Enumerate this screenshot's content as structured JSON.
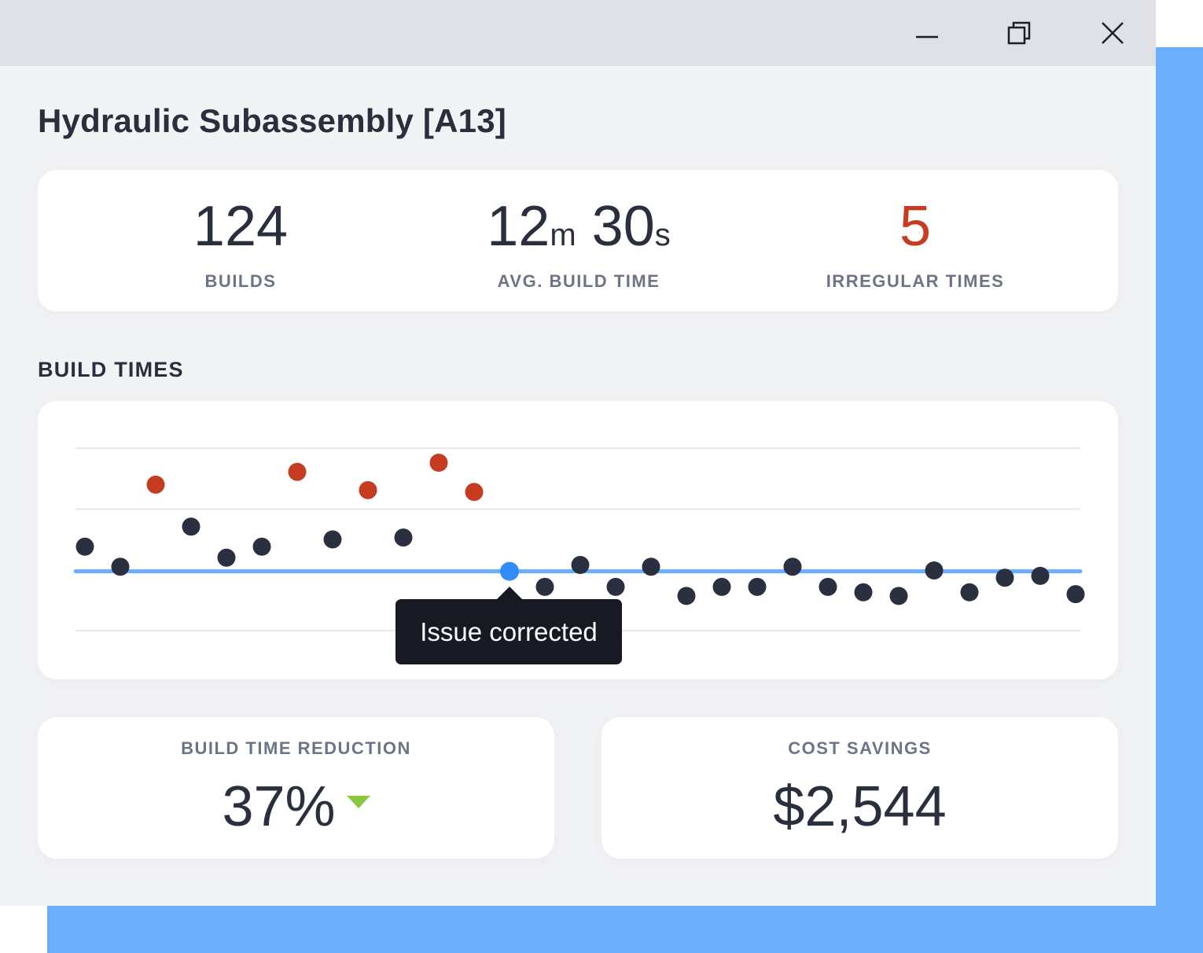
{
  "window": {
    "controls": {
      "minimize_icon": "minimize-icon",
      "maximize_icon": "restore-icon",
      "close_icon": "close-icon"
    }
  },
  "page": {
    "title": "Hydraulic Subassembly [A13]"
  },
  "stats": {
    "builds": {
      "value": "124",
      "label": "BUILDS"
    },
    "avg_build_time": {
      "minutes": "12",
      "minutes_unit": "m",
      "seconds": "30",
      "seconds_unit": "s",
      "label": "AVG. BUILD TIME"
    },
    "irregular_times": {
      "value": "5",
      "label": "IRREGULAR TIMES",
      "color": "#c73b21"
    }
  },
  "build_times": {
    "section_title": "BUILD TIMES",
    "tooltip": "Issue corrected"
  },
  "colors": {
    "normal_point": "#2a3040",
    "irregular_point": "#c73b21",
    "highlight_point": "#2f8cf8",
    "average_line": "#6aaefc",
    "gridline": "#e6e7ea",
    "accent": "#6aaefc"
  },
  "chart_data": {
    "type": "scatter",
    "ylim": [
      0,
      100
    ],
    "grid": true,
    "average_line": 32.5,
    "highlight_index": 12,
    "series": [
      {
        "x": [
          1,
          2,
          3,
          4,
          5,
          6,
          7,
          8,
          9,
          10,
          11,
          12,
          13,
          14,
          15,
          16,
          17,
          18,
          19,
          20,
          21,
          22,
          23,
          24,
          25,
          26,
          27,
          28,
          29
        ],
        "y": [
          46,
          35,
          80,
          57,
          40,
          46,
          87,
          50,
          77,
          51,
          92,
          76,
          32.5,
          24,
          36,
          24,
          35,
          19,
          24,
          24,
          35,
          24,
          21,
          19,
          33,
          21,
          29,
          30,
          20
        ],
        "status": [
          "normal",
          "normal",
          "irregular",
          "normal",
          "normal",
          "normal",
          "irregular",
          "normal",
          "irregular",
          "normal",
          "irregular",
          "irregular",
          "highlight",
          "normal",
          "normal",
          "normal",
          "normal",
          "normal",
          "normal",
          "normal",
          "normal",
          "normal",
          "normal",
          "normal",
          "normal",
          "normal",
          "normal",
          "normal",
          "normal"
        ]
      }
    ]
  },
  "summary": {
    "reduction": {
      "label": "BUILD TIME REDUCTION",
      "value": "37%",
      "trend": "down",
      "trend_color": "#8dc63f"
    },
    "savings": {
      "label": "COST SAVINGS",
      "value": "$2,544"
    }
  }
}
